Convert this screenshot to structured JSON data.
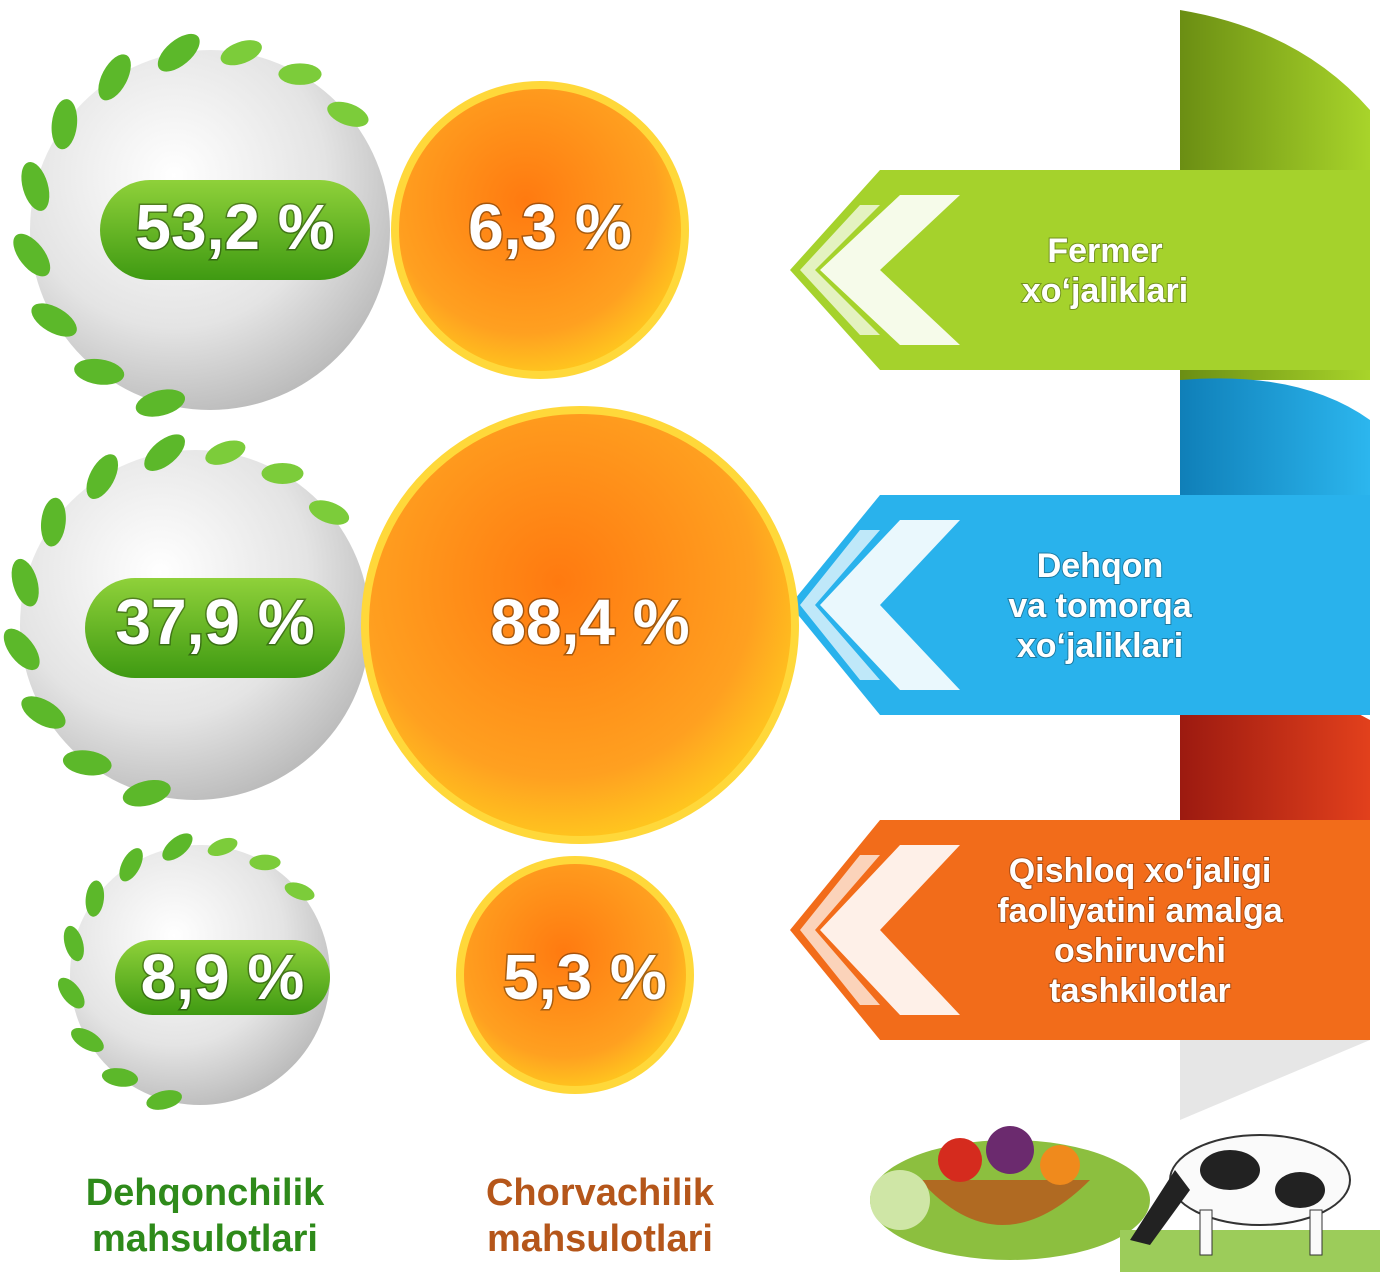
{
  "rows": [
    {
      "label": [
        "Fermer",
        "xo‘jaliklari"
      ],
      "crop": "53,2 %",
      "livestock": "6,3 %"
    },
    {
      "label": [
        "Dehqon",
        "va tomorqa",
        "xo‘jaliklari"
      ],
      "crop": "37,9 %",
      "livestock": "88,4 %"
    },
    {
      "label": [
        "Qishloq xo‘jaligi",
        "faoliyatini amalga",
        "oshiruvchi",
        "tashkilotlar"
      ],
      "crop": "8,9 %",
      "livestock": "5,3 %"
    }
  ],
  "legend": {
    "crop": [
      "Dehqonchilik",
      "mahsulotlari"
    ],
    "livestock": [
      "Chorvachilik",
      "mahsulotlari"
    ]
  }
}
